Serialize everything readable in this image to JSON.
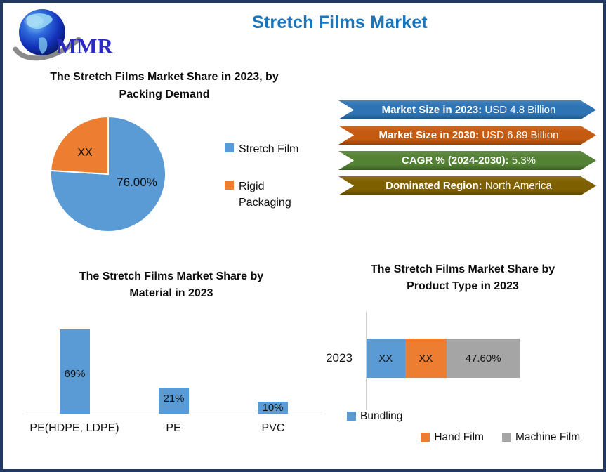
{
  "header": {
    "title": "Stretch Films Market",
    "logo_text": "MMR",
    "title_color": "#1776BD",
    "frame_color": "#1F3864"
  },
  "banners": [
    {
      "label": "Market Size in 2023:",
      "value": "USD 4.8 Billion",
      "color": "#2E74B5"
    },
    {
      "label": "Market Size in 2030:",
      "value": "USD 6.89 Billion",
      "color": "#C55A11"
    },
    {
      "label": "CAGR % (2024-2030):",
      "value": "5.3%",
      "color": "#548235"
    },
    {
      "label": "Dominated Region:",
      "value": "North America",
      "color": "#7F6000"
    }
  ],
  "chart_data": [
    {
      "type": "pie",
      "title": "The Stretch Films Market Share in 2023, by Packing Demand",
      "labels": [
        "Stretch Film",
        "Rigid Packaging"
      ],
      "values": [
        76,
        24
      ],
      "data_labels": [
        "76.00%",
        "XX"
      ],
      "colors": [
        "#5B9BD5",
        "#ED7D31"
      ],
      "legend_position": "right",
      "start_angle_deg": 0
    },
    {
      "type": "bar",
      "title": "The Stretch Films Market Share by Material in 2023",
      "categories": [
        "PE(HDPE, LDPE)",
        "PE",
        "PVC"
      ],
      "values": [
        69,
        21,
        10
      ],
      "data_labels": [
        "69%",
        "21%",
        "10%"
      ],
      "bar_color": "#5B9BD5",
      "ylim": [
        0,
        75
      ],
      "grid": false
    },
    {
      "type": "bar",
      "orientation": "horizontal-stacked",
      "title": "The Stretch Films Market Share by Product Type in 2023",
      "categories": [
        "2023"
      ],
      "series": [
        {
          "name": "Bundling",
          "value": 25.0,
          "label": "XX",
          "color": "#5B9BD5"
        },
        {
          "name": "Hand Film",
          "value": 27.4,
          "label": "XX",
          "color": "#ED7D31"
        },
        {
          "name": "Machine Film",
          "value": 47.6,
          "label": "47.60%",
          "color": "#A5A5A5"
        }
      ],
      "legend_position": "bottom"
    }
  ]
}
